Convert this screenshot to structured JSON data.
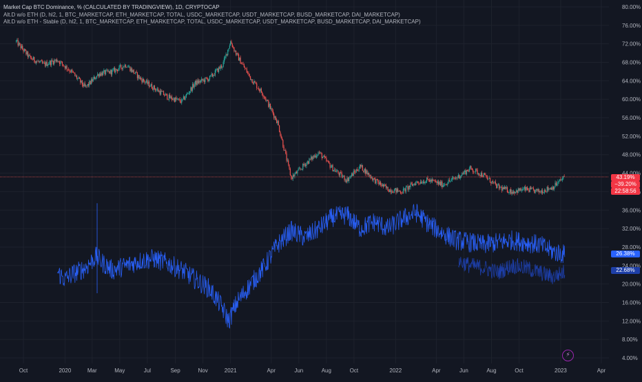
{
  "legend": {
    "main_title": "Market Cap BTC Dominance, % (CALCULATED BY TRADINGVIEW), 1D, CRYPTOCAP",
    "line1": "Alt.D w/o ETH (D, hl2, 1, BTC_MARKETCAP, ETH_MARKETCAP, TOTAL, USDC_MARKETCAP, USDT_MARKETCAP, BUSD_MARKETCAP, DAI_MARKETCAP)",
    "line2": "Alt.D w/o ETH - Stable (D, hl2, 1, BTC_MARKETCAP, ETH_MARKETCAP, TOTAL, USDC_MARKETCAP, USDT_MARKETCAP, BUSD_MARKETCAP, DAI_MARKETCAP)"
  },
  "badges": {
    "btc_price": "43.19%",
    "btc_change": "−39.20%",
    "btc_countdown": "22:58:56",
    "alt_value": "26.38%",
    "alt_stable_value": "22.68%"
  },
  "colors": {
    "background": "#131722",
    "up_candle": "#26a69a",
    "down_candle": "#ef5350",
    "alt_series": "#2962ff",
    "alt_stable_series": "#1e40af",
    "price_line": "#ef5350",
    "badge_red": "#f23645",
    "badge_blue": "#2962ff",
    "badge_dark_blue": "#1e3fa8"
  },
  "icons": {
    "bolt": "lightning-bolt-icon"
  },
  "chart_data": {
    "type": "line",
    "title": "Market Cap BTC Dominance, % (CALCULATED BY TRADINGVIEW), 1D, CRYPTOCAP",
    "x_axis_labels": [
      "Oct",
      "2020",
      "Mar",
      "May",
      "Jul",
      "Sep",
      "Nov",
      "2021",
      "Apr",
      "Jun",
      "Aug",
      "Oct",
      "2022",
      "Apr",
      "Jun",
      "Aug",
      "Oct",
      "2023",
      "Apr"
    ],
    "x_axis_dates": [
      "2019-10-01",
      "2020-01-01",
      "2020-03-01",
      "2020-05-01",
      "2020-07-01",
      "2020-09-01",
      "2020-11-01",
      "2021-01-01",
      "2021-04-01",
      "2021-06-01",
      "2021-08-01",
      "2021-10-01",
      "2022-01-01",
      "2022-04-01",
      "2022-06-01",
      "2022-08-01",
      "2022-10-01",
      "2023-01-01",
      "2023-04-01"
    ],
    "y_axis_labels": [
      "80.00%",
      "76.00%",
      "72.00%",
      "68.00%",
      "64.00%",
      "60.00%",
      "56.00%",
      "52.00%",
      "48.00%",
      "44.00%",
      "40.00%",
      "36.00%",
      "32.00%",
      "28.00%",
      "24.00%",
      "20.00%",
      "16.00%",
      "12.00%",
      "8.00%",
      "4.00%"
    ],
    "ylim": [
      4,
      80
    ],
    "last_price": 43.19,
    "series": [
      {
        "name": "Market Cap BTC Dominance",
        "style": "candles",
        "x": [
          "2019-09-15",
          "2019-10-15",
          "2019-11-15",
          "2019-12-15",
          "2020-01-15",
          "2020-02-15",
          "2020-03-15",
          "2020-04-15",
          "2020-05-15",
          "2020-06-15",
          "2020-07-15",
          "2020-08-15",
          "2020-09-15",
          "2020-10-15",
          "2020-11-15",
          "2020-12-15",
          "2021-01-01",
          "2021-01-15",
          "2021-02-15",
          "2021-03-15",
          "2021-04-15",
          "2021-05-15",
          "2021-06-01",
          "2021-06-15",
          "2021-07-15",
          "2021-08-15",
          "2021-09-15",
          "2021-10-15",
          "2021-11-15",
          "2021-12-15",
          "2022-01-15",
          "2022-02-15",
          "2022-03-15",
          "2022-04-15",
          "2022-05-15",
          "2022-06-15",
          "2022-07-15",
          "2022-08-15",
          "2022-09-15",
          "2022-10-15",
          "2022-11-15",
          "2022-12-15",
          "2023-01-10"
        ],
        "y": [
          72.5,
          69.0,
          67.5,
          68.5,
          66.0,
          62.5,
          65.5,
          66.0,
          67.5,
          64.5,
          62.5,
          60.5,
          59.5,
          63.5,
          64.5,
          67.5,
          72.5,
          69.5,
          64.5,
          61.0,
          55.0,
          43.0,
          44.5,
          46.0,
          48.5,
          45.0,
          42.5,
          45.5,
          42.5,
          40.5,
          40.0,
          42.0,
          42.5,
          41.5,
          43.0,
          45.0,
          43.5,
          41.0,
          40.0,
          40.5,
          40.0,
          41.0,
          43.2
        ]
      },
      {
        "name": "Alt.D w/o ETH",
        "style": "line",
        "x": [
          "2019-12-15",
          "2020-01-01",
          "2020-01-15",
          "2020-02-15",
          "2020-03-10",
          "2020-03-25",
          "2020-04-15",
          "2020-05-15",
          "2020-06-15",
          "2020-07-15",
          "2020-08-15",
          "2020-09-15",
          "2020-10-15",
          "2020-11-15",
          "2020-12-10",
          "2020-12-28",
          "2021-01-15",
          "2021-02-15",
          "2021-03-15",
          "2021-04-15",
          "2021-05-15",
          "2021-06-15",
          "2021-07-15",
          "2021-08-15",
          "2021-09-15",
          "2021-10-15",
          "2021-11-15",
          "2021-12-15",
          "2022-01-15",
          "2022-02-15",
          "2022-03-15",
          "2022-04-15",
          "2022-05-15",
          "2022-06-15",
          "2022-07-15",
          "2022-08-15",
          "2022-09-15",
          "2022-10-15",
          "2022-11-15",
          "2022-12-15",
          "2023-01-10"
        ],
        "y": [
          22.5,
          21.0,
          22.0,
          23.5,
          26.0,
          24.5,
          23.0,
          24.0,
          25.0,
          25.5,
          24.5,
          23.0,
          21.0,
          19.0,
          15.5,
          12.0,
          16.0,
          20.0,
          23.5,
          28.5,
          31.5,
          30.0,
          32.0,
          34.5,
          35.0,
          32.0,
          33.5,
          32.0,
          34.0,
          35.5,
          33.0,
          31.0,
          29.5,
          29.0,
          28.5,
          29.0,
          29.5,
          29.0,
          28.5,
          27.0,
          26.4
        ]
      },
      {
        "name": "Alt.D w/o ETH - Stable",
        "style": "line",
        "x": [
          "2022-05-20",
          "2022-06-15",
          "2022-07-15",
          "2022-08-15",
          "2022-09-15",
          "2022-10-15",
          "2022-11-15",
          "2022-12-15",
          "2023-01-10"
        ],
        "y": [
          25.0,
          24.0,
          23.5,
          22.5,
          24.0,
          23.5,
          22.5,
          21.5,
          22.7
        ]
      }
    ]
  }
}
